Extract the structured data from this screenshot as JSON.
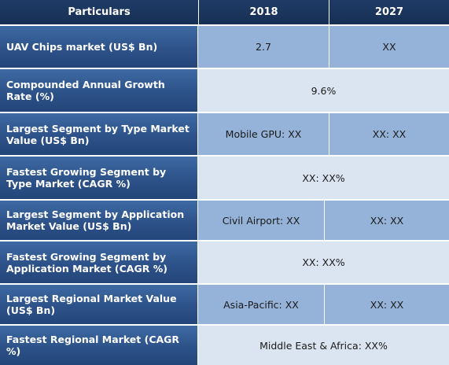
{
  "header": {
    "particulars": "Particulars",
    "year1": "2018",
    "year2": "2027"
  },
  "rows": [
    {
      "label": "UAV Chips market (US$ Bn)",
      "v1": "2.7",
      "v2": "XX"
    },
    {
      "label": "Compounded Annual Growth Rate (%)",
      "span": "9.6%"
    },
    {
      "label": "Largest Segment by Type Market Value (US$ Bn)",
      "v1": "Mobile GPU: XX",
      "v2": "XX: XX"
    },
    {
      "label": "Fastest Growing Segment by Type Market (CAGR %)",
      "span": "XX: XX%"
    },
    {
      "label": "Largest Segment by Application Market Value (US$ Bn)",
      "v1": "Civil Airport: XX",
      "v2": "XX: XX"
    },
    {
      "label": "Fastest Growing Segment by Application Market (CAGR %)",
      "span": "XX: XX%"
    },
    {
      "label": "Largest Regional Market Value (US$ Bn)",
      "v1": "Asia-Pacific: XX",
      "v2": "XX: XX"
    },
    {
      "label": "Fastest Regional Market (CAGR %)",
      "span": "Middle East & Africa: XX%"
    }
  ]
}
